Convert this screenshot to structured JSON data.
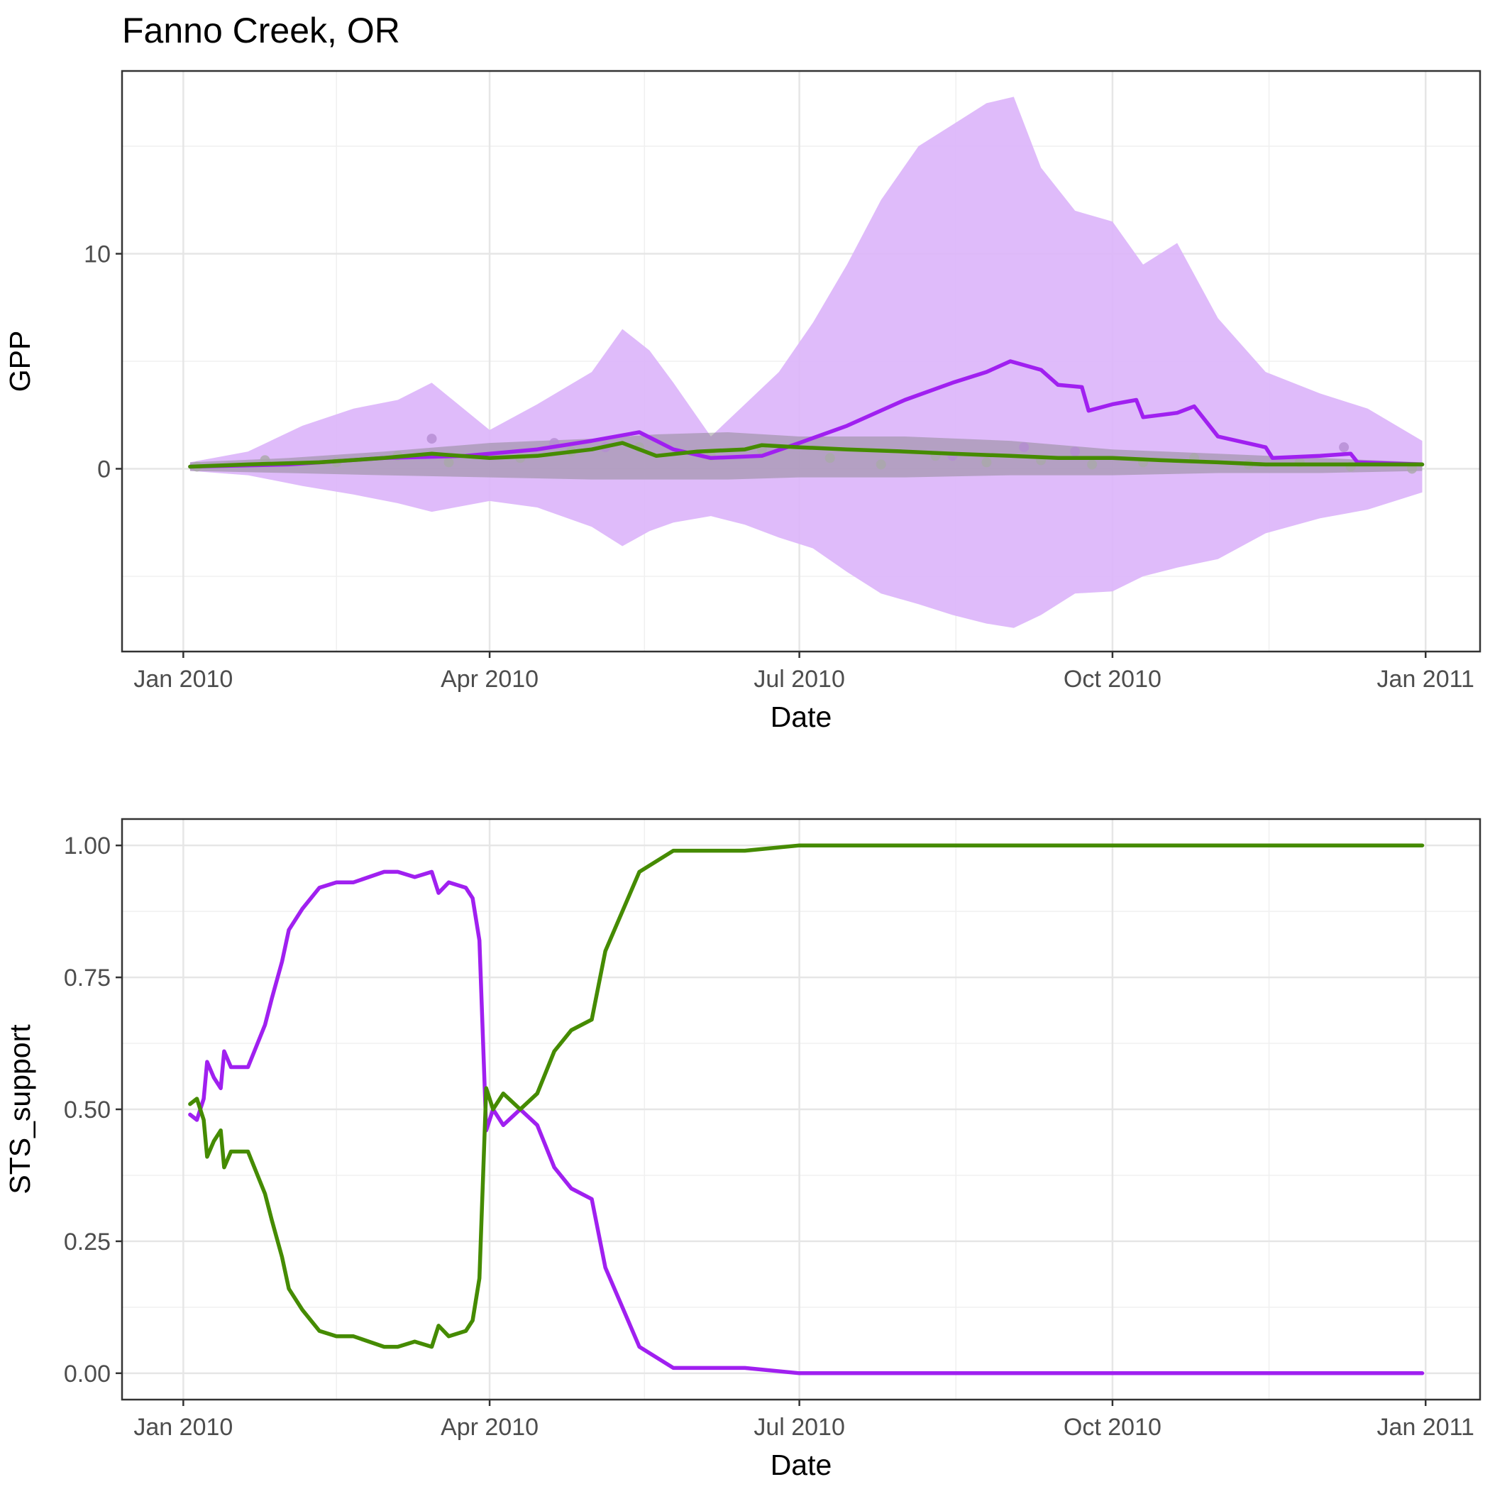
{
  "title": "Fanno Creek, OR",
  "chart_data": [
    {
      "type": "line",
      "xlabel": "Date",
      "ylabel": "GPP",
      "x_ticks": [
        "Jan 2010",
        "Apr 2010",
        "Jul 2010",
        "Oct 2010",
        "Jan 2011"
      ],
      "x_tick_dates": [
        "2010-01-01",
        "2010-04-01",
        "2010-07-01",
        "2010-10-01",
        "2011-01-01"
      ],
      "xlim": [
        "2009-12-14",
        "2011-01-17"
      ],
      "y_ticks": [
        "0",
        "10"
      ],
      "y_tick_values": [
        0,
        10
      ],
      "ylim": [
        -8.5,
        18.5
      ],
      "grid": true,
      "colors": {
        "purple": "#a020f0",
        "purple_band": "#dcb4fa",
        "green": "#458b00",
        "grey_band": "#808080",
        "grey_points": "#a9a9a9",
        "purple_points": "#b48cd2"
      },
      "series": [
        {
          "kind": "ribbon",
          "color": "#dcb4fa",
          "x": [
            "2010-01-03",
            "2010-01-20",
            "2010-02-05",
            "2010-02-20",
            "2010-03-05",
            "2010-03-15",
            "2010-04-01",
            "2010-04-15",
            "2010-05-01",
            "2010-05-10",
            "2010-05-18",
            "2010-05-25",
            "2010-06-05",
            "2010-06-15",
            "2010-06-25",
            "2010-07-05",
            "2010-07-15",
            "2010-07-25",
            "2010-08-05",
            "2010-08-15",
            "2010-08-25",
            "2010-09-02",
            "2010-09-10",
            "2010-09-20",
            "2010-10-01",
            "2010-10-10",
            "2010-10-20",
            "2010-11-01",
            "2010-11-15",
            "2010-12-01",
            "2010-12-15",
            "2010-12-31"
          ],
          "ymin": [
            -0.1,
            -0.3,
            -0.8,
            -1.2,
            -1.6,
            -2.0,
            -1.5,
            -1.8,
            -2.7,
            -3.6,
            -2.9,
            -2.5,
            -2.2,
            -2.6,
            -3.2,
            -3.7,
            -4.8,
            -5.8,
            -6.3,
            -6.8,
            -7.2,
            -7.4,
            -6.8,
            -5.8,
            -5.7,
            -5.0,
            -4.6,
            -4.2,
            -3.0,
            -2.3,
            -1.9,
            -1.1
          ],
          "ymax": [
            0.3,
            0.8,
            2.0,
            2.8,
            3.2,
            4.0,
            1.8,
            3.0,
            4.5,
            6.5,
            5.5,
            4.0,
            1.5,
            3.0,
            4.5,
            6.8,
            9.5,
            12.5,
            15.0,
            16.0,
            17.0,
            17.3,
            14.0,
            12.0,
            11.5,
            9.5,
            10.5,
            7.0,
            4.5,
            3.5,
            2.8,
            1.3
          ]
        },
        {
          "kind": "ribbon",
          "color": "#808080",
          "x": [
            "2010-01-03",
            "2010-02-01",
            "2010-03-01",
            "2010-04-01",
            "2010-05-01",
            "2010-05-20",
            "2010-06-10",
            "2010-07-01",
            "2010-08-01",
            "2010-09-01",
            "2010-10-01",
            "2010-11-01",
            "2010-12-01",
            "2010-12-31"
          ],
          "ymin": [
            -0.1,
            -0.2,
            -0.3,
            -0.4,
            -0.5,
            -0.5,
            -0.5,
            -0.4,
            -0.4,
            -0.3,
            -0.3,
            -0.2,
            -0.2,
            -0.1
          ],
          "ymax": [
            0.3,
            0.5,
            0.8,
            1.2,
            1.4,
            1.6,
            1.7,
            1.5,
            1.5,
            1.3,
            0.9,
            0.7,
            0.5,
            0.3
          ]
        },
        {
          "kind": "points",
          "color": "#a9a9a9",
          "x": [
            "2010-01-05",
            "2010-01-25",
            "2010-02-15",
            "2010-03-05",
            "2010-03-20",
            "2010-04-10",
            "2010-04-25",
            "2010-05-15",
            "2010-06-05",
            "2010-06-20",
            "2010-07-10",
            "2010-07-25",
            "2010-08-10",
            "2010-08-25",
            "2010-09-10",
            "2010-09-25",
            "2010-10-10",
            "2010-10-25",
            "2010-11-10",
            "2010-11-25",
            "2010-12-10",
            "2010-12-28"
          ],
          "y": [
            0.1,
            0.4,
            0.3,
            0.6,
            0.3,
            0.5,
            0.8,
            1.0,
            0.6,
            0.9,
            0.5,
            0.2,
            0.6,
            0.3,
            0.4,
            0.2,
            0.3,
            0.5,
            0.2,
            0.3,
            0.1,
            0.0
          ]
        },
        {
          "kind": "points",
          "color": "#b48cd2",
          "x": [
            "2010-03-15",
            "2010-04-20",
            "2010-05-05",
            "2010-08-15",
            "2010-09-05",
            "2010-09-20",
            "2010-12-08"
          ],
          "y": [
            1.4,
            1.2,
            1.0,
            0.6,
            1.0,
            0.8,
            1.0
          ]
        },
        {
          "kind": "line",
          "color": "#a020f0",
          "x": [
            "2010-01-03",
            "2010-02-01",
            "2010-03-01",
            "2010-03-25",
            "2010-04-15",
            "2010-05-01",
            "2010-05-15",
            "2010-05-25",
            "2010-06-05",
            "2010-06-20",
            "2010-07-01",
            "2010-07-15",
            "2010-08-01",
            "2010-08-15",
            "2010-08-25",
            "2010-09-01",
            "2010-09-10",
            "2010-09-15",
            "2010-09-22",
            "2010-09-24",
            "2010-10-01",
            "2010-10-08",
            "2010-10-10",
            "2010-10-20",
            "2010-10-25",
            "2010-11-01",
            "2010-11-15",
            "2010-11-17",
            "2010-12-01",
            "2010-12-10",
            "2010-12-12",
            "2010-12-31"
          ],
          "y": [
            0.1,
            0.2,
            0.5,
            0.6,
            0.9,
            1.3,
            1.7,
            0.9,
            0.5,
            0.6,
            1.2,
            2.0,
            3.2,
            4.0,
            4.5,
            5.0,
            4.6,
            3.9,
            3.8,
            2.7,
            3.0,
            3.2,
            2.4,
            2.6,
            2.9,
            1.5,
            1.0,
            0.5,
            0.6,
            0.7,
            0.3,
            0.2
          ]
        },
        {
          "kind": "line",
          "color": "#458b00",
          "x": [
            "2010-01-03",
            "2010-01-20",
            "2010-02-10",
            "2010-03-01",
            "2010-03-15",
            "2010-04-01",
            "2010-04-15",
            "2010-05-01",
            "2010-05-10",
            "2010-05-20",
            "2010-06-01",
            "2010-06-15",
            "2010-06-20",
            "2010-07-01",
            "2010-07-15",
            "2010-08-01",
            "2010-08-15",
            "2010-09-01",
            "2010-09-15",
            "2010-10-01",
            "2010-10-15",
            "2010-11-01",
            "2010-11-15",
            "2010-12-01",
            "2010-12-15",
            "2010-12-31"
          ],
          "y": [
            0.1,
            0.2,
            0.3,
            0.5,
            0.7,
            0.5,
            0.6,
            0.9,
            1.2,
            0.6,
            0.8,
            0.9,
            1.1,
            1.0,
            0.9,
            0.8,
            0.7,
            0.6,
            0.5,
            0.5,
            0.4,
            0.3,
            0.2,
            0.2,
            0.2,
            0.2
          ]
        }
      ]
    },
    {
      "type": "line",
      "xlabel": "Date",
      "ylabel": "STS_support",
      "x_ticks": [
        "Jan 2010",
        "Apr 2010",
        "Jul 2010",
        "Oct 2010",
        "Jan 2011"
      ],
      "x_tick_dates": [
        "2010-01-01",
        "2010-04-01",
        "2010-07-01",
        "2010-10-01",
        "2011-01-01"
      ],
      "xlim": [
        "2009-12-14",
        "2011-01-17"
      ],
      "y_ticks": [
        "0.00",
        "0.25",
        "0.50",
        "0.75",
        "1.00"
      ],
      "y_tick_values": [
        0,
        0.25,
        0.5,
        0.75,
        1.0
      ],
      "ylim": [
        -0.05,
        1.05
      ],
      "grid": true,
      "series": [
        {
          "kind": "line",
          "color": "#a020f0",
          "x": [
            "2010-01-03",
            "2010-01-05",
            "2010-01-07",
            "2010-01-08",
            "2010-01-10",
            "2010-01-12",
            "2010-01-13",
            "2010-01-15",
            "2010-01-20",
            "2010-01-25",
            "2010-01-27",
            "2010-01-30",
            "2010-02-01",
            "2010-02-05",
            "2010-02-10",
            "2010-02-15",
            "2010-02-20",
            "2010-03-01",
            "2010-03-05",
            "2010-03-10",
            "2010-03-15",
            "2010-03-17",
            "2010-03-20",
            "2010-03-25",
            "2010-03-27",
            "2010-03-29",
            "2010-03-31",
            "2010-04-02",
            "2010-04-05",
            "2010-04-10",
            "2010-04-15",
            "2010-04-20",
            "2010-04-25",
            "2010-05-01",
            "2010-05-05",
            "2010-05-15",
            "2010-05-25",
            "2010-06-01",
            "2010-06-15",
            "2010-07-01",
            "2010-12-31"
          ],
          "y": [
            0.49,
            0.48,
            0.52,
            0.59,
            0.56,
            0.54,
            0.61,
            0.58,
            0.58,
            0.66,
            0.71,
            0.78,
            0.84,
            0.88,
            0.92,
            0.93,
            0.93,
            0.95,
            0.95,
            0.94,
            0.95,
            0.91,
            0.93,
            0.92,
            0.9,
            0.82,
            0.46,
            0.5,
            0.47,
            0.5,
            0.47,
            0.39,
            0.35,
            0.33,
            0.2,
            0.05,
            0.01,
            0.01,
            0.01,
            0.0,
            0.0
          ]
        },
        {
          "kind": "line",
          "color": "#458b00",
          "x": [
            "2010-01-03",
            "2010-01-05",
            "2010-01-07",
            "2010-01-08",
            "2010-01-10",
            "2010-01-12",
            "2010-01-13",
            "2010-01-15",
            "2010-01-20",
            "2010-01-25",
            "2010-01-27",
            "2010-01-30",
            "2010-02-01",
            "2010-02-05",
            "2010-02-10",
            "2010-02-15",
            "2010-02-20",
            "2010-03-01",
            "2010-03-05",
            "2010-03-10",
            "2010-03-15",
            "2010-03-17",
            "2010-03-20",
            "2010-03-25",
            "2010-03-27",
            "2010-03-29",
            "2010-03-31",
            "2010-04-02",
            "2010-04-05",
            "2010-04-10",
            "2010-04-15",
            "2010-04-20",
            "2010-04-25",
            "2010-05-01",
            "2010-05-05",
            "2010-05-15",
            "2010-05-25",
            "2010-06-01",
            "2010-06-15",
            "2010-07-01",
            "2010-12-31"
          ],
          "y": [
            0.51,
            0.52,
            0.48,
            0.41,
            0.44,
            0.46,
            0.39,
            0.42,
            0.42,
            0.34,
            0.29,
            0.22,
            0.16,
            0.12,
            0.08,
            0.07,
            0.07,
            0.05,
            0.05,
            0.06,
            0.05,
            0.09,
            0.07,
            0.08,
            0.1,
            0.18,
            0.54,
            0.5,
            0.53,
            0.5,
            0.53,
            0.61,
            0.65,
            0.67,
            0.8,
            0.95,
            0.99,
            0.99,
            0.99,
            1.0,
            1.0
          ]
        }
      ]
    }
  ]
}
